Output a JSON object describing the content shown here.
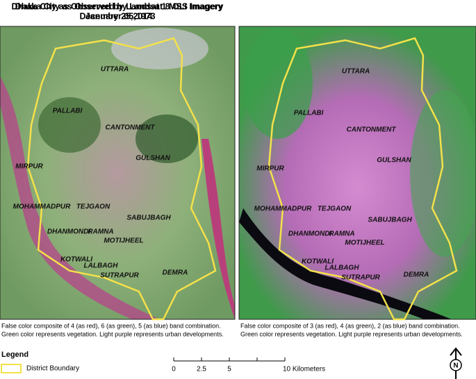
{
  "panels": [
    {
      "title_lines": [
        "Dhaka City as Observed by Landsat 1 MSS Imagery",
        "December 05,1973"
      ],
      "districts": [
        "UTTARA",
        "PALLABI",
        "CANTONMENT",
        "GULSHAN",
        "MIRPUR",
        "MOHAMMADPUR",
        "TEJGAON",
        "SABUJBAGH",
        "DHANMONDI",
        "RAMNA",
        "MOTIJHEEL",
        "KOTWALI",
        "LALBAGH",
        "SUTRAPUR",
        "DEMRA"
      ],
      "caption_lines": [
        "False color composite of 4 (as red), 6 (as green), 5 (as blue) band combination.",
        "Green color represents vegetation. Light purple represents urban developments."
      ]
    },
    {
      "title_lines": [
        "Dhaka City as Observed by Landsat 8 OLI Imagery",
        "January 25,2014"
      ],
      "districts": [
        "UTTARA",
        "PALLABI",
        "CANTONMENT",
        "GULSHAN",
        "MIRPUR",
        "MOHAMMADPUR",
        "TEJGAON",
        "SABUJBAGH",
        "DHANMONDI",
        "RAMNA",
        "MOTIJHEEL",
        "KOTWALI",
        "LALBAGH",
        "SUTRAPUR",
        "DEMRA"
      ],
      "caption_lines": [
        "False color composite of 3 (as red), 4 (as green), 2 (as blue) band combination.",
        "Green color represents vegetation. Light purple represents urban developments."
      ]
    }
  ],
  "legend": {
    "title": "Legend",
    "items": [
      "District Boundary"
    ]
  },
  "scale_bar": {
    "labels": [
      "0",
      "2.5",
      "5",
      "10 Kilometers"
    ]
  },
  "north_arrow": "N"
}
